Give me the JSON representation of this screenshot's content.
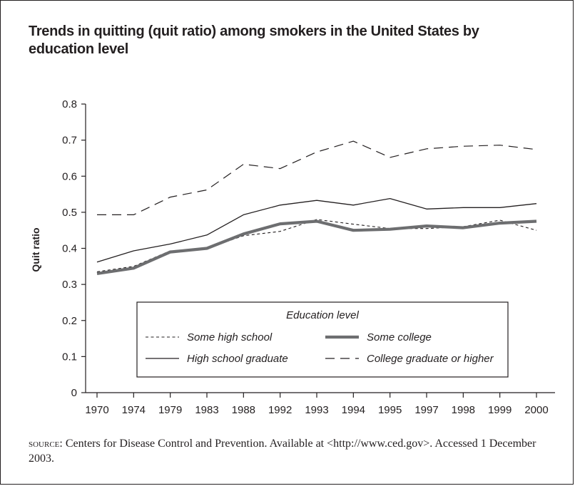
{
  "title": "Trends in quitting (quit ratio) among smokers in the United States by education level",
  "source_label": "source:",
  "source_text": " Centers for Disease Control and Prevention. Available at <http://www.ced.gov>. Accessed 1 December 2003.",
  "chart_data": {
    "type": "line",
    "title": "Trends in quitting (quit ratio) among smokers in the United States by education level",
    "xlabel": "",
    "ylabel": "Quit ratio",
    "categories": [
      "1970",
      "1974",
      "1979",
      "1983",
      "1988",
      "1992",
      "1993",
      "1994",
      "1995",
      "1997",
      "1998",
      "1999",
      "2000"
    ],
    "yticks": [
      "0",
      "0.1",
      "0.2",
      "0.3",
      "0.4",
      "0.5",
      "0.6",
      "0.7",
      "0.8"
    ],
    "ylim": [
      0,
      0.8
    ],
    "grid": false,
    "legend": {
      "title": "Education level",
      "placement": "lower-center"
    },
    "series": [
      {
        "name": "Some high school",
        "style": "short-dash",
        "color": "#231f20",
        "values": [
          0.335,
          0.35,
          0.393,
          0.4,
          0.435,
          0.447,
          0.48,
          0.467,
          0.455,
          0.455,
          0.46,
          0.478,
          0.45
        ]
      },
      {
        "name": "Some college",
        "style": "thick-gray",
        "color": "#6d6e70",
        "values": [
          0.33,
          0.345,
          0.39,
          0.4,
          0.44,
          0.468,
          0.475,
          0.45,
          0.453,
          0.462,
          0.457,
          0.47,
          0.475
        ]
      },
      {
        "name": "High school graduate",
        "style": "thin-solid",
        "color": "#231f20",
        "values": [
          0.362,
          0.393,
          0.412,
          0.437,
          0.493,
          0.52,
          0.533,
          0.52,
          0.538,
          0.509,
          0.513,
          0.513,
          0.524
        ]
      },
      {
        "name": "College graduate or higher",
        "style": "long-dash",
        "color": "#231f20",
        "values": [
          0.493,
          0.493,
          0.542,
          0.562,
          0.633,
          0.621,
          0.667,
          0.697,
          0.652,
          0.676,
          0.683,
          0.686,
          0.674
        ]
      }
    ]
  }
}
